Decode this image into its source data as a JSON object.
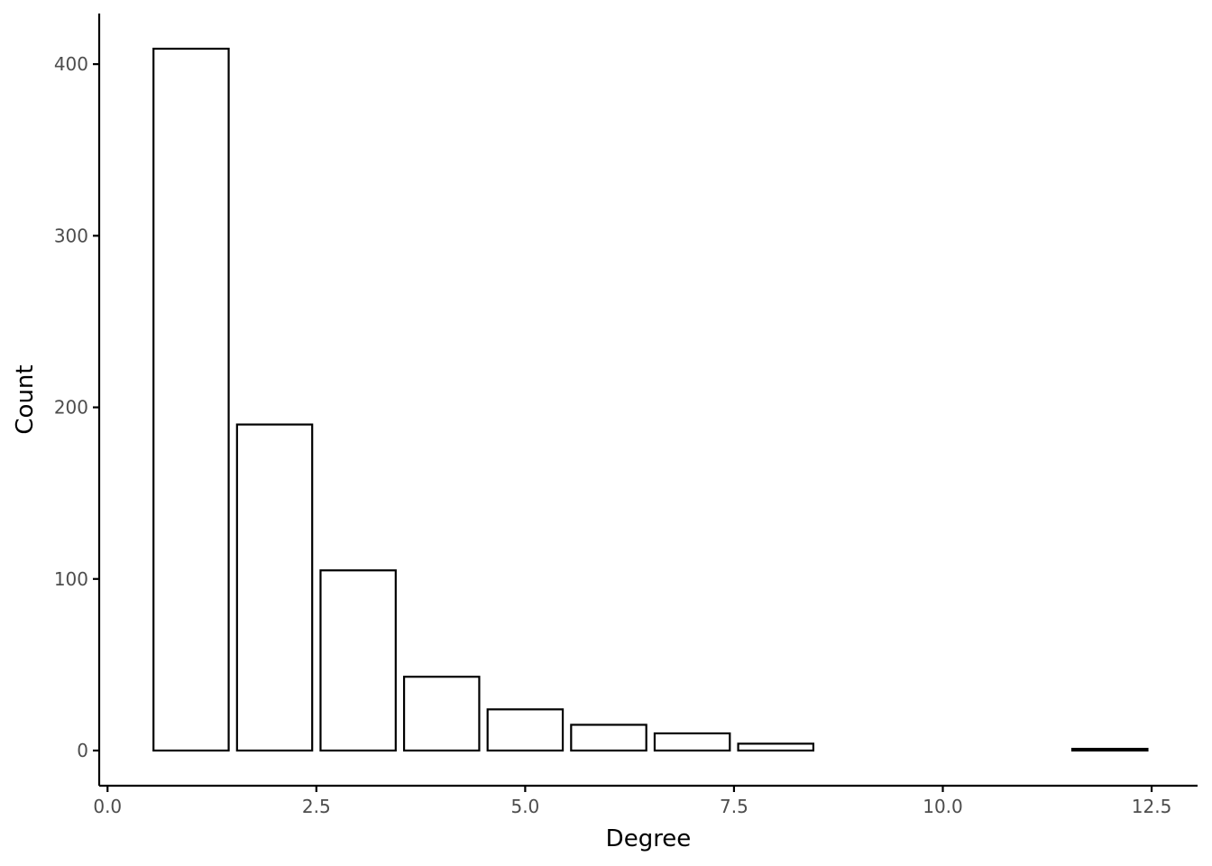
{
  "chart_data": {
    "type": "bar",
    "title": "",
    "xlabel": "Degree",
    "ylabel": "Count",
    "x": [
      1,
      2,
      3,
      4,
      5,
      6,
      7,
      8,
      12
    ],
    "values": [
      409,
      190,
      105,
      43,
      24,
      15,
      10,
      4,
      1
    ],
    "bar_width": 0.9,
    "xlim": [
      -0.1,
      13.05
    ],
    "ylim": [
      -20.5,
      429.5
    ],
    "x_ticks": [
      0,
      2.5,
      5,
      7.5,
      10,
      12.5
    ],
    "x_tick_labels": [
      "0.0",
      "2.5",
      "5.0",
      "7.5",
      "10.0",
      "12.5"
    ],
    "y_ticks": [
      0,
      100,
      200,
      300,
      400
    ],
    "y_tick_labels": [
      "0",
      "100",
      "200",
      "300",
      "400"
    ],
    "grid": false,
    "legend": "none",
    "colors": {
      "bar_fill": "#ffffff",
      "bar_stroke": "#000000",
      "axis": "#000000",
      "tick_text": "#4d4d4d"
    }
  }
}
